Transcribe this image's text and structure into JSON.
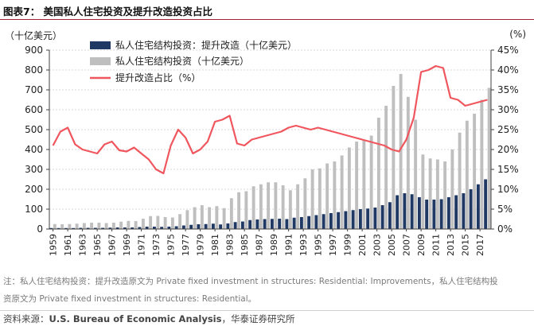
{
  "figure": {
    "title": "图表7：  美国私人住宅投资及提升改造投资占比"
  },
  "chart_data": {
    "type": "bar+line",
    "title": "美国私人住宅投资及提升改造投资占比",
    "unit_left": "（十亿美元）",
    "unit_right": "(%)",
    "y_left": {
      "min": 0,
      "max": 900,
      "step": 100,
      "ticks": [
        "0",
        "100",
        "200",
        "300",
        "400",
        "500",
        "600",
        "700",
        "800",
        "900"
      ]
    },
    "y_right": {
      "min": 0,
      "max": 45,
      "step": 5,
      "ticks": [
        "0%",
        "5%",
        "10%",
        "15%",
        "20%",
        "25%",
        "30%",
        "35%",
        "40%",
        "45%"
      ]
    },
    "x_tick_labels": [
      "1959",
      "1961",
      "1963",
      "1965",
      "1967",
      "1969",
      "1971",
      "1973",
      "1975",
      "1977",
      "1979",
      "1981",
      "1983",
      "1985",
      "1987",
      "1989",
      "1991",
      "1993",
      "1995",
      "1997",
      "1999",
      "2001",
      "2003",
      "2005",
      "2007",
      "2009",
      "2011",
      "2013",
      "2015",
      "2017"
    ],
    "years": [
      1959,
      1960,
      1961,
      1962,
      1963,
      1964,
      1965,
      1966,
      1967,
      1968,
      1969,
      1970,
      1971,
      1972,
      1973,
      1974,
      1975,
      1976,
      1977,
      1978,
      1979,
      1980,
      1981,
      1982,
      1983,
      1984,
      1985,
      1986,
      1987,
      1988,
      1989,
      1990,
      1991,
      1992,
      1993,
      1994,
      1995,
      1996,
      1997,
      1998,
      1999,
      2000,
      2001,
      2002,
      2003,
      2004,
      2005,
      2006,
      2007,
      2008,
      2009,
      2010,
      2011,
      2012,
      2013,
      2014,
      2015,
      2016,
      2017,
      2018
    ],
    "legend_position": "top-center",
    "series": [
      {
        "name": "私人住宅结构投资：提升改造（十亿美元）",
        "kind": "bar",
        "axis": "left",
        "color": "#1f3864",
        "values": [
          5,
          5,
          5,
          5,
          6,
          6,
          6,
          6,
          7,
          8,
          8,
          8,
          10,
          12,
          12,
          11,
          12,
          14,
          18,
          21,
          24,
          25,
          27,
          23,
          28,
          35,
          38,
          45,
          48,
          50,
          51,
          52,
          50,
          57,
          60,
          65,
          70,
          75,
          80,
          85,
          90,
          95,
          100,
          103,
          108,
          120,
          135,
          170,
          180,
          175,
          160,
          148,
          148,
          150,
          160,
          170,
          180,
          200,
          225,
          250
        ]
      },
      {
        "name": "私人住宅结构投资（十亿美元）",
        "kind": "bar",
        "axis": "left",
        "color": "#bfbfbf",
        "values": [
          25,
          24,
          25,
          27,
          30,
          32,
          32,
          30,
          32,
          37,
          41,
          40,
          52,
          65,
          66,
          60,
          58,
          75,
          95,
          110,
          120,
          110,
          115,
          105,
          155,
          185,
          190,
          215,
          225,
          235,
          235,
          220,
          195,
          225,
          255,
          300,
          305,
          330,
          340,
          370,
          410,
          440,
          450,
          470,
          560,
          620,
          720,
          780,
          665,
          550,
          375,
          355,
          350,
          340,
          400,
          485,
          545,
          580,
          650,
          710
        ]
      },
      {
        "name": "提升改造占比（%）",
        "kind": "line",
        "axis": "right",
        "color": "#f0565e",
        "values": [
          21.0,
          24.5,
          25.5,
          21.3,
          20.0,
          19.5,
          19.0,
          21.3,
          22.0,
          19.8,
          19.5,
          20.5,
          19.0,
          17.5,
          15.0,
          14.0,
          21.0,
          25.0,
          23.0,
          19.0,
          20.0,
          22.0,
          27.0,
          27.5,
          28.5,
          21.5,
          21.0,
          22.5,
          23.0,
          23.5,
          24.0,
          24.5,
          25.5,
          26.0,
          25.5,
          25.0,
          25.5,
          25.0,
          24.5,
          24.0,
          23.5,
          23.0,
          22.5,
          22.0,
          21.5,
          21.0,
          20.0,
          19.5,
          22.5,
          28.0,
          39.5,
          40.0,
          41.0,
          40.5,
          33.0,
          32.5,
          31.0,
          31.5,
          32.0,
          32.5
        ]
      }
    ]
  },
  "notes": {
    "line1": "注：私人住宅结构投资：提升改造原文为 Private fixed investment in structures: Residential: Improvements，私人住宅结构投",
    "line2": "资原文为 Private fixed investment in structures: Residential。"
  },
  "source": {
    "prefix": "资料来源：",
    "org": "U.S. Bureau of Economic Analysis",
    "suffix": "，华泰证券研究所"
  }
}
